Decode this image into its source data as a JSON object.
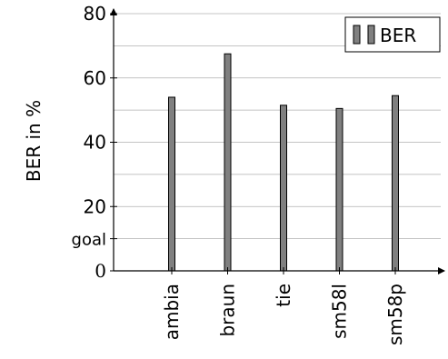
{
  "chart_data": {
    "type": "bar",
    "categories": [
      "ambia",
      "braun",
      "tie",
      "sm58l",
      "sm58p"
    ],
    "series": [
      {
        "name": "BER",
        "values": [
          54,
          67.5,
          51.5,
          50.5,
          54.5
        ]
      }
    ],
    "title": "",
    "xlabel": "",
    "ylabel": "BER in %",
    "ylim": [
      0,
      80
    ],
    "yticks": [
      {
        "value": 80,
        "label": "80"
      },
      {
        "value": 60,
        "label": "60"
      },
      {
        "value": 40,
        "label": "40"
      },
      {
        "value": 20,
        "label": "20"
      },
      {
        "value": 10,
        "label": "goal"
      },
      {
        "value": 0,
        "label": "0"
      }
    ],
    "grid": true,
    "legend": {
      "position": "top-right",
      "entries": [
        "BER"
      ]
    },
    "colors": {
      "bar_fill": "#808080",
      "bar_stroke": "#000000",
      "grid": "#b0b0b0",
      "axis": "#000000"
    }
  }
}
